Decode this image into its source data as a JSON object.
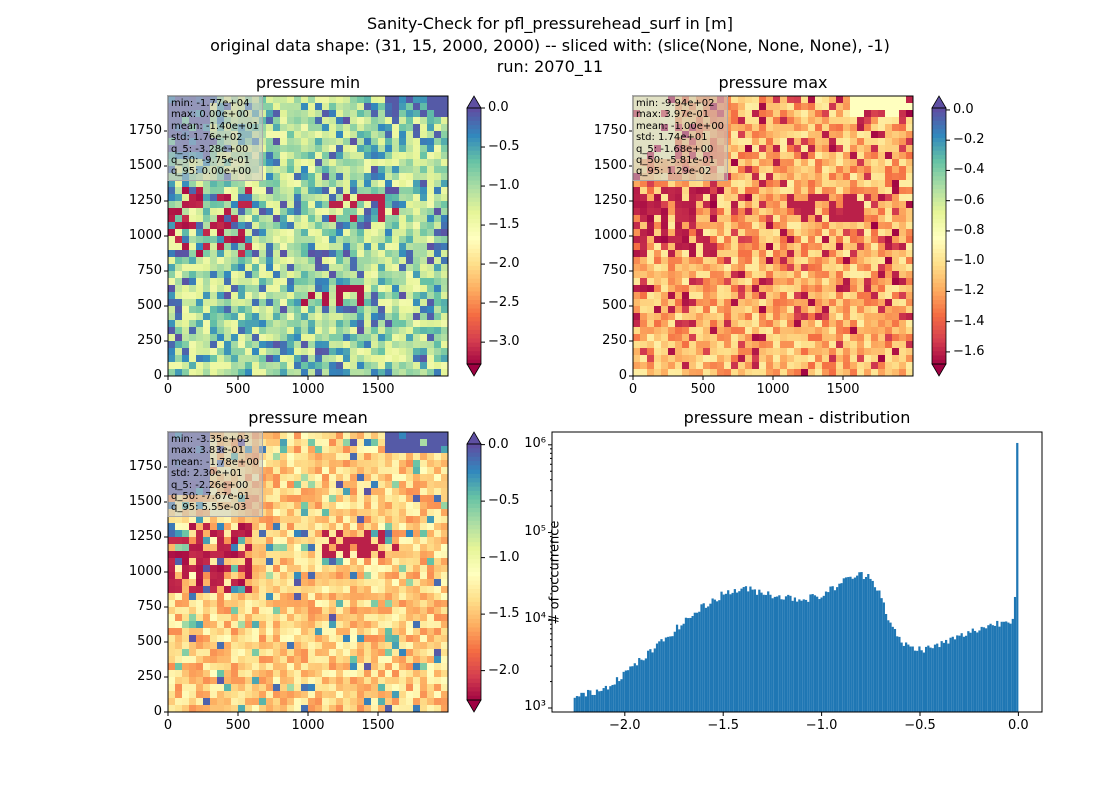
{
  "title_lines": [
    "Sanity-Check for pfl_pressurehead_surf in [m]",
    "original data shape: (31, 15, 2000, 2000) -- sliced with: (slice(None, None, None), -1)",
    "run: 2070_11"
  ],
  "colors": {
    "hist_bar": "#1f77b4",
    "cmap": "Spectral",
    "over_color": "#5e4fa2",
    "under_color": "#9e0142"
  },
  "chart_data": [
    {
      "type": "heatmap",
      "title": "pressure min",
      "x_ticks": [
        "0",
        "500",
        "1000",
        "1500"
      ],
      "y_ticks": [
        "0",
        "250",
        "500",
        "750",
        "1000",
        "1250",
        "1500",
        "1750"
      ],
      "colorbar": {
        "ticks": [
          "0.0",
          "−0.5",
          "−1.0",
          "−1.5",
          "−2.0",
          "−2.5",
          "−3.0"
        ],
        "vmin": -3.28,
        "vmax": 0.0,
        "extend": "both"
      },
      "stats": [
        "min: -1.77e+04",
        "max: 0.00e+00",
        "mean: -1.40e+01",
        "std: 1.76e+02",
        "q_5: -3.28e+00",
        "q_50: -9.75e-01",
        "q_95: 0.00e+00"
      ]
    },
    {
      "type": "heatmap",
      "title": "pressure max",
      "x_ticks": [
        "0",
        "500",
        "1000",
        "1500"
      ],
      "y_ticks": [
        "0",
        "250",
        "500",
        "750",
        "1000",
        "1250",
        "1500",
        "1750"
      ],
      "colorbar": {
        "ticks": [
          "0.0",
          "−0.2",
          "−0.4",
          "−0.6",
          "−0.8",
          "−1.0",
          "−1.2",
          "−1.4",
          "−1.6"
        ],
        "vmin": -1.68,
        "vmax": 0.0129,
        "extend": "both"
      },
      "stats": [
        "min: -9.94e+02",
        "max: 3.97e-01",
        "mean: -1.00e+00",
        "std: 1.74e+01",
        "q_5: -1.68e+00",
        "q_50: -5.81e-01",
        "q_95: 1.29e-02"
      ]
    },
    {
      "type": "heatmap",
      "title": "pressure mean",
      "x_ticks": [
        "0",
        "500",
        "1000",
        "1500"
      ],
      "y_ticks": [
        "0",
        "250",
        "500",
        "750",
        "1000",
        "1250",
        "1500",
        "1750"
      ],
      "colorbar": {
        "ticks": [
          "0.0",
          "−0.5",
          "−1.0",
          "−1.5",
          "−2.0"
        ],
        "vmin": -2.26,
        "vmax": 0.00555,
        "extend": "both"
      },
      "stats": [
        "min: -3.35e+03",
        "max: 3.83e-01",
        "mean: -1.78e+00",
        "std: 2.30e+01",
        "q_5: -2.26e+00",
        "q_50: -7.67e-01",
        "q_95: 5.55e-03"
      ]
    },
    {
      "type": "bar",
      "title": "pressure mean - distribution",
      "ylabel": "# of occurrence",
      "yscale": "log",
      "x_ticks": [
        "−2.0",
        "−1.5",
        "−1.0",
        "−0.5",
        "0.0"
      ],
      "y_ticks": [
        "10³",
        "10⁴",
        "10⁵",
        "10⁶"
      ],
      "xlim": [
        -2.37,
        0.12
      ],
      "ylim": [
        900,
        1400000
      ],
      "profile_x": [
        -2.26,
        -2.1,
        -2.0,
        -1.9,
        -1.8,
        -1.7,
        -1.6,
        -1.5,
        -1.4,
        -1.3,
        -1.2,
        -1.1,
        -1.0,
        -0.9,
        -0.85,
        -0.8,
        -0.75,
        -0.7,
        -0.65,
        -0.6,
        -0.55,
        -0.5,
        -0.45,
        -0.4,
        -0.35,
        -0.3,
        -0.25,
        -0.2,
        -0.15,
        -0.1,
        -0.05,
        -0.03,
        -0.01,
        0.0
      ],
      "profile_y": [
        1300,
        1700,
        2500,
        3800,
        6000,
        9500,
        14500,
        20000,
        23000,
        21000,
        18500,
        17500,
        19000,
        27000,
        31000,
        33000,
        32000,
        20000,
        9000,
        5800,
        4900,
        4700,
        4800,
        5300,
        5900,
        6500,
        7200,
        8000,
        8700,
        9300,
        9800,
        10500,
        25000,
        1050000
      ]
    }
  ]
}
